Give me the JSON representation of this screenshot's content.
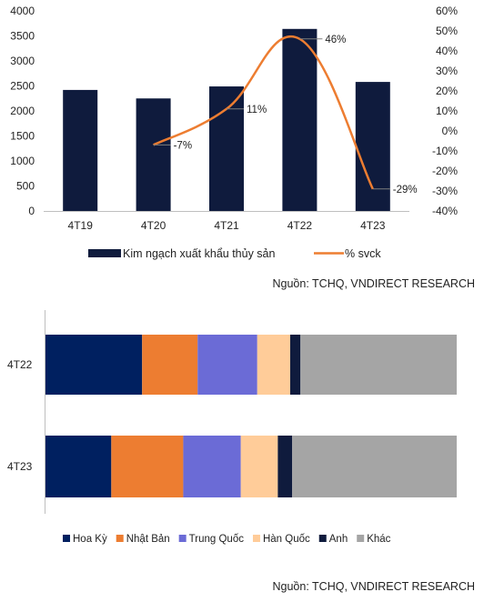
{
  "chart_data": [
    {
      "type": "bar+line",
      "categories": [
        "4T19",
        "4T20",
        "4T21",
        "4T22",
        "4T23"
      ],
      "series": [
        {
          "name": "Kim ngạch xuất khẩu thủy sản",
          "type": "bar",
          "axis": "left",
          "values": [
            2420,
            2250,
            2490,
            3640,
            2580
          ],
          "color": "#0f1b3d"
        },
        {
          "name": "% svck",
          "type": "line",
          "axis": "right",
          "values": [
            null,
            -7,
            11,
            46,
            -29
          ],
          "color": "#ed7d31",
          "labels": [
            "",
            "-7%",
            "11%",
            "46%",
            "-29%"
          ]
        }
      ],
      "ylim_left": [
        0,
        4000
      ],
      "yticks_left": [
        0,
        500,
        1000,
        1500,
        2000,
        2500,
        3000,
        3500,
        4000
      ],
      "ylim_right": [
        -40,
        60
      ],
      "yticks_right": [
        "-40%",
        "-30%",
        "-20%",
        "-10%",
        "0%",
        "10%",
        "20%",
        "30%",
        "40%",
        "50%",
        "60%"
      ],
      "grid": false,
      "legend": "bottom",
      "source": "Nguồn: TCHQ, VNDIRECT RESEARCH"
    },
    {
      "type": "stacked-bar-horizontal-100",
      "categories": [
        "4T22",
        "4T23"
      ],
      "series": [
        {
          "name": "Hoa Kỳ",
          "values": [
            23.5,
            16
          ],
          "color": "#002060"
        },
        {
          "name": "Nhật Bản",
          "values": [
            13.5,
            17.5
          ],
          "color": "#ed7d31"
        },
        {
          "name": "Trung Quốc",
          "values": [
            14.5,
            14
          ],
          "color": "#6b6bd6"
        },
        {
          "name": "Hàn Quốc",
          "values": [
            8,
            9
          ],
          "color": "#ffcc99"
        },
        {
          "name": "Anh",
          "values": [
            2.5,
            3.5
          ],
          "color": "#0f1b3d"
        },
        {
          "name": "Khác",
          "values": [
            38,
            40
          ],
          "color": "#a5a5a5"
        }
      ],
      "xlim": [
        0,
        100
      ],
      "legend": "bottom",
      "source": "Nguồn: TCHQ, VNDIRECT RESEARCH"
    }
  ]
}
